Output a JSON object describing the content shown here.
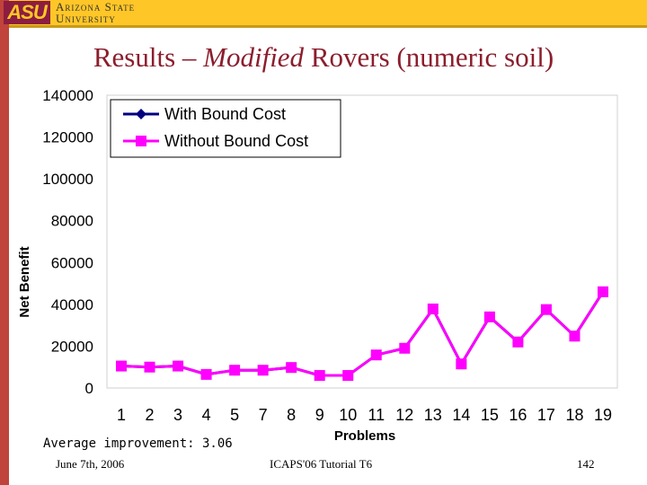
{
  "header": {
    "logo_text": "ASU",
    "university_line1": "Arizona State",
    "university_line2": "University"
  },
  "slide": {
    "title_pre": "Results – ",
    "title_italic": "Modified",
    "title_post": " Rovers (numeric soil)",
    "note": "Average improvement: 3.06"
  },
  "footer": {
    "date": "June 7th, 2006",
    "conference": "ICAPS'06 Tutorial T6",
    "page": "142"
  },
  "colors": {
    "top_bar": "#ffc627",
    "left_bar": "#c0443b",
    "title": "#8b1e2d",
    "series_with": "#000080",
    "series_without": "#ff00ff"
  },
  "chart_data": {
    "type": "line",
    "xlabel": "Problems",
    "ylabel": "Net Benefit",
    "categories": [
      "1",
      "2",
      "3",
      "4",
      "5",
      "7",
      "8",
      "9",
      "10",
      "11",
      "12",
      "13",
      "14",
      "15",
      "16",
      "17",
      "18",
      "19"
    ],
    "ylim": [
      0,
      140000
    ],
    "yticks": [
      0,
      20000,
      40000,
      60000,
      80000,
      100000,
      120000,
      140000
    ],
    "legend_position": "top-left",
    "grid": false,
    "series": [
      {
        "name": "With Bound Cost",
        "marker": "diamond",
        "values": [
          10500,
          10000,
          10500,
          6500,
          8500,
          8500,
          9800,
          6000,
          6000,
          15800,
          19000,
          37800,
          11500,
          34000,
          22000,
          37500,
          24800,
          46000
        ]
      },
      {
        "name": "Without Bound Cost",
        "marker": "square",
        "values": [
          10500,
          10000,
          10500,
          6500,
          8500,
          8500,
          9800,
          6000,
          6000,
          15800,
          19000,
          37800,
          11500,
          34000,
          22000,
          37500,
          24800,
          46000
        ]
      }
    ]
  }
}
